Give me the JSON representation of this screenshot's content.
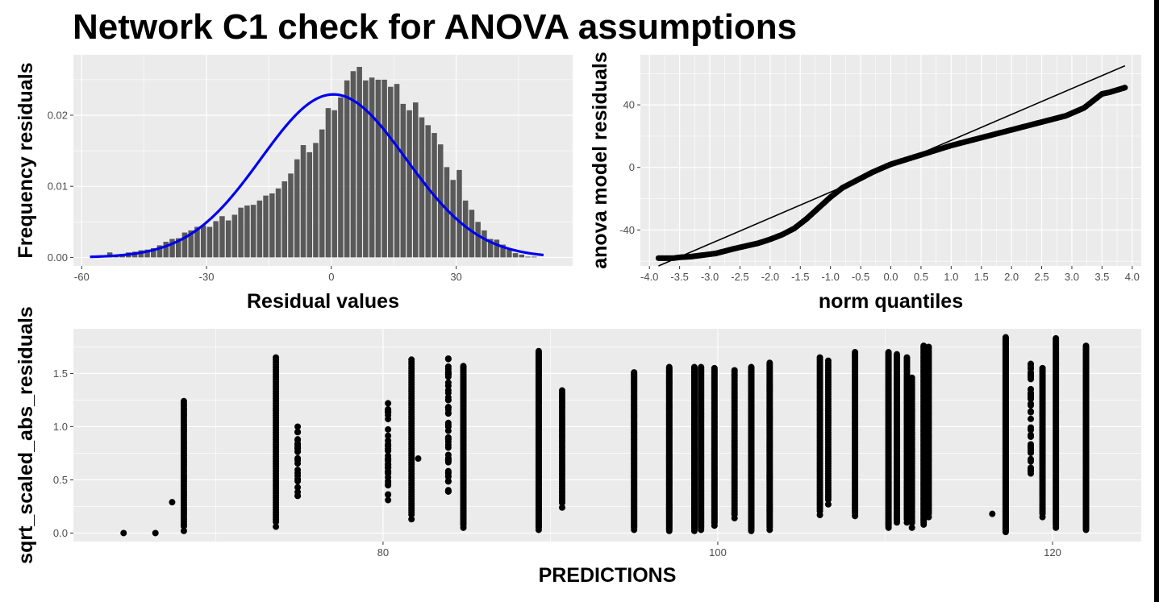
{
  "title": "Network C1 check for ANOVA assumptions",
  "chart_data": [
    {
      "type": "bar",
      "subtype": "histogram_with_normal_curve",
      "xlabel": "Residual values",
      "ylabel": "Frequency residuals",
      "xlim": [
        -62,
        58
      ],
      "ylim": [
        -0.0012,
        0.0285
      ],
      "xticks": [
        -60,
        -30,
        0,
        30
      ],
      "yticks": [
        0.0,
        0.01,
        0.02
      ],
      "ytick_labels": [
        "0.00",
        "0.01",
        "0.02"
      ],
      "bin_width": 1.5,
      "bins_start": -55.5,
      "values": [
        0.0002,
        0.0007,
        0.0004,
        0.0005,
        0.0007,
        0.0008,
        0.001,
        0.0011,
        0.0013,
        0.0017,
        0.0022,
        0.0026,
        0.0027,
        0.0035,
        0.0038,
        0.0043,
        0.0045,
        0.0043,
        0.0051,
        0.0058,
        0.0052,
        0.006,
        0.007,
        0.0073,
        0.0074,
        0.008,
        0.0087,
        0.009,
        0.0097,
        0.0107,
        0.0118,
        0.0138,
        0.0158,
        0.0148,
        0.0161,
        0.018,
        0.021,
        0.0207,
        0.0225,
        0.0249,
        0.0262,
        0.0268,
        0.0249,
        0.0253,
        0.025,
        0.025,
        0.024,
        0.0244,
        0.0216,
        0.0207,
        0.0218,
        0.0197,
        0.0186,
        0.0175,
        0.0159,
        0.0127,
        0.0109,
        0.0123,
        0.008,
        0.0067,
        0.005,
        0.0038,
        0.0026,
        0.0025,
        0.0018,
        0.0011,
        0.0006,
        0.0004,
        0.0001,
        0.0001
      ],
      "bar_color": "#595959",
      "curve": {
        "name": "normal density",
        "mean": 0.5,
        "sd": 17.4,
        "x_range": [
          -58,
          51
        ],
        "color": "#0000ee"
      },
      "grid": true,
      "background": "#ebebeb"
    },
    {
      "type": "scatter",
      "subtype": "qq_plot",
      "xlabel": "norm quantiles",
      "ylabel": "anova model residuals",
      "xlim": [
        -4.15,
        4.15
      ],
      "ylim": [
        -63,
        72
      ],
      "xticks": [
        -4.0,
        -3.5,
        -3.0,
        -2.5,
        -2.0,
        -1.5,
        -1.0,
        -0.5,
        0.0,
        0.5,
        1.0,
        1.5,
        2.0,
        2.5,
        3.0,
        3.5,
        4.0
      ],
      "xtick_labels": [
        "-4.0",
        "-3.5",
        "-3.0",
        "-2.5",
        "-2.0",
        "-1.5",
        "-1.0",
        "-0.5",
        "0.0",
        "0.5",
        "1.0",
        "1.5",
        "2.0",
        "2.5",
        "3.0",
        "3.5",
        "4.0"
      ],
      "yticks": [
        -40,
        0,
        40
      ],
      "reference_line": {
        "from": [
          -3.85,
          -63
        ],
        "to": [
          3.88,
          65
        ]
      },
      "points": [
        [
          -3.85,
          -58
        ],
        [
          -3.6,
          -58
        ],
        [
          -3.5,
          -57.5
        ],
        [
          -3.3,
          -57
        ],
        [
          -3.1,
          -56
        ],
        [
          -2.9,
          -55
        ],
        [
          -2.6,
          -52
        ],
        [
          -2.2,
          -48.5
        ],
        [
          -2.0,
          -46
        ],
        [
          -1.8,
          -43
        ],
        [
          -1.6,
          -39
        ],
        [
          -1.4,
          -33
        ],
        [
          -1.2,
          -26
        ],
        [
          -1.0,
          -19
        ],
        [
          -0.8,
          -13
        ],
        [
          -0.5,
          -7
        ],
        [
          -0.3,
          -3
        ],
        [
          0.0,
          2
        ],
        [
          0.5,
          8
        ],
        [
          1.0,
          14
        ],
        [
          1.5,
          19
        ],
        [
          2.0,
          24
        ],
        [
          2.5,
          29
        ],
        [
          2.9,
          33
        ],
        [
          3.2,
          38
        ],
        [
          3.5,
          47
        ],
        [
          3.62,
          48
        ],
        [
          3.88,
          51
        ]
      ],
      "grid": true,
      "background": "#ebebeb"
    },
    {
      "type": "scatter",
      "subtype": "scale_location_strips",
      "xlabel": "PREDICTIONS",
      "ylabel": "sqrt_scaled_abs_residuals",
      "xlim": [
        61.5,
        125.3
      ],
      "ylim": [
        -0.08,
        1.92
      ],
      "xticks": [
        80,
        100,
        120
      ],
      "yticks": [
        0.0,
        0.5,
        1.0,
        1.5
      ],
      "ytick_labels": [
        "0.0",
        "0.5",
        "1.0",
        "1.5"
      ],
      "strips": [
        {
          "x": 64.5,
          "lo": 0.0,
          "hi": 0.0,
          "n": 1
        },
        {
          "x": 66.4,
          "lo": 0.0,
          "hi": 0.0,
          "n": 1
        },
        {
          "x": 67.4,
          "lo": 0.29,
          "hi": 0.29,
          "n": 1
        },
        {
          "x": 68.1,
          "lo": 0.02,
          "hi": 1.24,
          "n": 55
        },
        {
          "x": 73.6,
          "lo": 0.06,
          "hi": 1.65,
          "n": 35
        },
        {
          "x": 74.9,
          "lo": 0.35,
          "hi": 1.0,
          "n": 14
        },
        {
          "x": 80.3,
          "lo": 0.31,
          "hi": 1.22,
          "n": 9
        },
        {
          "x": 81.7,
          "lo": 0.13,
          "hi": 1.63,
          "n": 70
        },
        {
          "x": 82.1,
          "lo": 0.7,
          "hi": 0.7,
          "n": 1
        },
        {
          "x": 83.9,
          "lo": 0.39,
          "hi": 1.64,
          "n": 12
        },
        {
          "x": 84.8,
          "lo": 0.05,
          "hi": 1.57,
          "n": 120
        },
        {
          "x": 89.3,
          "lo": 0.03,
          "hi": 1.71,
          "n": 150
        },
        {
          "x": 90.7,
          "lo": 0.24,
          "hi": 1.34,
          "n": 35
        },
        {
          "x": 95.0,
          "lo": 0.03,
          "hi": 1.51,
          "n": 160
        },
        {
          "x": 97.1,
          "lo": 0.02,
          "hi": 1.56,
          "n": 200
        },
        {
          "x": 98.6,
          "lo": 0.02,
          "hi": 1.56,
          "n": 200
        },
        {
          "x": 99.0,
          "lo": 0.03,
          "hi": 1.56,
          "n": 160
        },
        {
          "x": 99.8,
          "lo": 0.07,
          "hi": 1.55,
          "n": 120
        },
        {
          "x": 101.0,
          "lo": 0.14,
          "hi": 1.53,
          "n": 80
        },
        {
          "x": 102.0,
          "lo": 0.02,
          "hi": 1.56,
          "n": 200
        },
        {
          "x": 103.1,
          "lo": 0.03,
          "hi": 1.6,
          "n": 140
        },
        {
          "x": 106.1,
          "lo": 0.17,
          "hi": 1.65,
          "n": 80
        },
        {
          "x": 106.6,
          "lo": 0.27,
          "hi": 1.62,
          "n": 60
        },
        {
          "x": 108.2,
          "lo": 0.16,
          "hi": 1.7,
          "n": 120
        },
        {
          "x": 110.2,
          "lo": 0.05,
          "hi": 1.7,
          "n": 200
        },
        {
          "x": 110.7,
          "lo": 0.1,
          "hi": 1.68,
          "n": 160
        },
        {
          "x": 111.3,
          "lo": 0.1,
          "hi": 1.65,
          "n": 100
        },
        {
          "x": 111.6,
          "lo": 0.05,
          "hi": 1.46,
          "n": 40
        },
        {
          "x": 112.3,
          "lo": 0.08,
          "hi": 1.76,
          "n": 160
        },
        {
          "x": 112.6,
          "lo": 0.15,
          "hi": 1.75,
          "n": 100
        },
        {
          "x": 116.4,
          "lo": 0.18,
          "hi": 0.18,
          "n": 1
        },
        {
          "x": 117.2,
          "lo": 0.01,
          "hi": 1.84,
          "n": 260
        },
        {
          "x": 118.7,
          "lo": 0.56,
          "hi": 1.59,
          "n": 22
        },
        {
          "x": 119.4,
          "lo": 0.15,
          "hi": 1.55,
          "n": 90
        },
        {
          "x": 120.2,
          "lo": 0.05,
          "hi": 1.83,
          "n": 150
        },
        {
          "x": 122.0,
          "lo": 0.03,
          "hi": 1.76,
          "n": 200
        }
      ],
      "grid": true,
      "background": "#ebebeb"
    }
  ]
}
